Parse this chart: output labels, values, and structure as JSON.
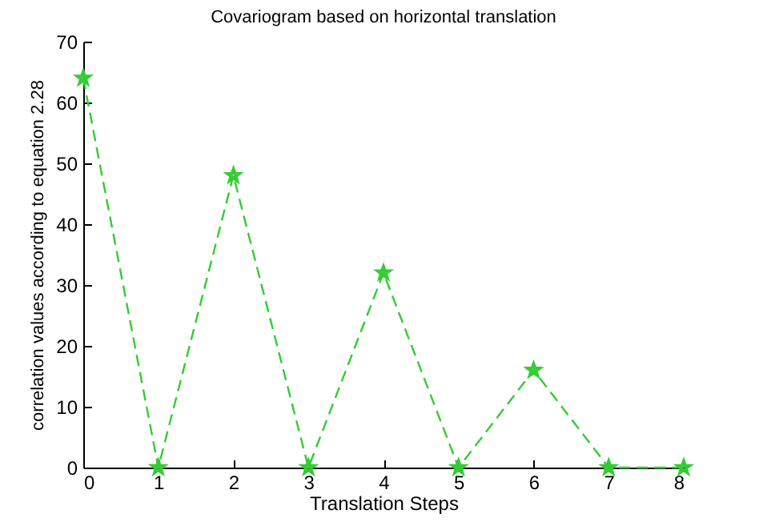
{
  "chart_data": {
    "type": "line",
    "title": "Covariogram based on horizontal translation",
    "xlabel": "Translation Steps",
    "ylabel": "correlation values according to equation 2.28",
    "x": [
      0,
      1,
      2,
      3,
      4,
      5,
      6,
      7,
      8
    ],
    "series": [
      {
        "color": "#33cc33",
        "values": [
          64,
          0,
          48,
          0,
          32,
          0,
          16,
          0,
          0
        ]
      }
    ],
    "xlim": [
      0,
      8
    ],
    "xticks": [
      0,
      1,
      2,
      3,
      4,
      5,
      6,
      7,
      8
    ],
    "ylim": [
      0,
      70
    ],
    "yticks": [
      0,
      10,
      20,
      30,
      40,
      50,
      60,
      70
    ],
    "grid": false,
    "marker": "star",
    "line_style": "dashed"
  }
}
